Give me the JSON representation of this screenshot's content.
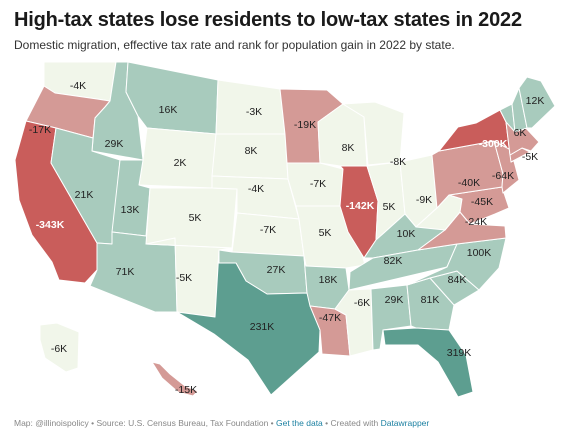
{
  "title": "High-tax states lose residents to low-tax states in 2022",
  "subtitle": "Domestic migration, effective tax rate and rank for population gain in 2022 by state.",
  "footer": {
    "source": "Map: @illinoispolicy • Source: U.S. Census Bureau, Tax Foundation • ",
    "get_data": "Get the data",
    "sep": " • Created with ",
    "datawrapper": "Datawrapper"
  },
  "colors": {
    "strong_loss": "#c95d5b",
    "moderate_loss": "#d49a96",
    "neutral": "#f1f6ea",
    "mild_gain": "#a8cbbd",
    "strong_gain": "#5d9e90",
    "border": "#ffffff"
  },
  "states": {
    "WA": {
      "label": "-4K"
    },
    "OR": {
      "label": "-17K"
    },
    "CA": {
      "label": "-343K"
    },
    "NV": {
      "label": "21K"
    },
    "ID": {
      "label": "29K"
    },
    "MT": {
      "label": "16K"
    },
    "WY": {
      "label": "2K"
    },
    "UT": {
      "label": "13K"
    },
    "AZ": {
      "label": "71K"
    },
    "CO": {
      "label": "5K"
    },
    "NM": {
      "label": "-5K"
    },
    "ND": {
      "label": "-3K"
    },
    "SD": {
      "label": "8K"
    },
    "NE": {
      "label": "-4K"
    },
    "KS": {
      "label": "-7K"
    },
    "OK": {
      "label": "27K"
    },
    "TX": {
      "label": "231K"
    },
    "MN": {
      "label": "-19K"
    },
    "IA": {
      "label": "-7K"
    },
    "MO": {
      "label": "5K"
    },
    "AR": {
      "label": "18K"
    },
    "LA": {
      "label": "-47K"
    },
    "WI": {
      "label": "8K"
    },
    "IL": {
      "label": "-142K"
    },
    "MI": {
      "label": "-8K"
    },
    "IN": {
      "label": "5K"
    },
    "OH": {
      "label": "-9K"
    },
    "KY": {
      "label": "10K"
    },
    "TN": {
      "label": "82K"
    },
    "MS": {
      "label": "-6K"
    },
    "AL": {
      "label": "29K"
    },
    "GA": {
      "label": "81K"
    },
    "FL": {
      "label": "319K"
    },
    "SC": {
      "label": "84K"
    },
    "NC": {
      "label": "100K"
    },
    "VA": {
      "label": "-24K"
    },
    "WV": {
      "label": ""
    },
    "MD": {
      "label": "-45K"
    },
    "PA": {
      "label": "-40K"
    },
    "NJ": {
      "label": "-64K"
    },
    "NY": {
      "label": "-300K"
    },
    "CT": {
      "label": ""
    },
    "MA": {
      "label": "-5K"
    },
    "VT": {
      "label": "6K"
    },
    "NH": {
      "label": ""
    },
    "ME": {
      "label": "12K"
    },
    "AK": {
      "label": "-6K"
    },
    "HI": {
      "label": "-15K"
    }
  }
}
